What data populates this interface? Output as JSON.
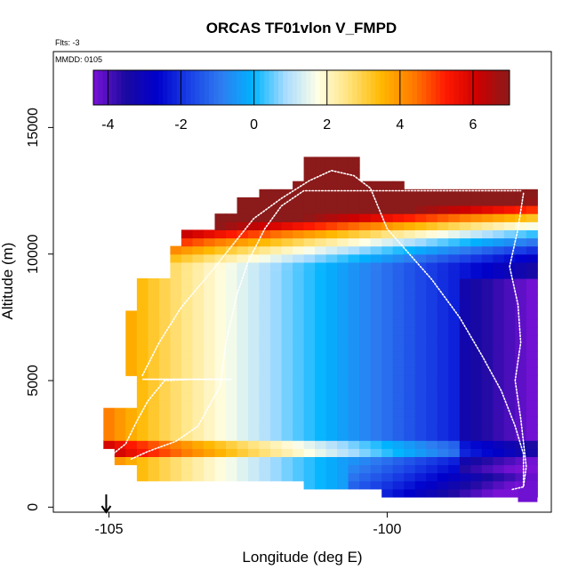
{
  "chart_data": {
    "type": "heatmap",
    "title": "ORCAS TF01vlon V_FMPD",
    "annotations": {
      "flights": "Flts: -3",
      "date": "MMDD: 0105"
    },
    "xlabel": "Longitude (deg E)",
    "ylabel": "Altitude (m)",
    "xlim": [
      -106.0,
      -97.05
    ],
    "ylim": [
      -200,
      18000
    ],
    "x_ticks": [
      -105,
      -100
    ],
    "y_ticks": [
      0,
      5000,
      10000,
      15000
    ],
    "colorbar": {
      "range": [
        -4.4,
        7.0
      ],
      "ticks": [
        -4,
        -2,
        0,
        2,
        4,
        6
      ],
      "colors": [
        "#7a12d6",
        "#1a0aa0",
        "#0000cc",
        "#1a40e6",
        "#2e7cf0",
        "#00b4ff",
        "#a8dcff",
        "#ffffe6",
        "#ffe27a",
        "#ffb800",
        "#ff7a00",
        "#ff1a00",
        "#cc0000",
        "#8b1a1a"
      ]
    },
    "cell_size": {
      "lon_deg": 0.2,
      "alt_m": 320
    },
    "cell_grid_note": "values in m/s; rows from 800 m to 13720 m",
    "marker": {
      "label": "",
      "longitude": -105.05
    }
  }
}
